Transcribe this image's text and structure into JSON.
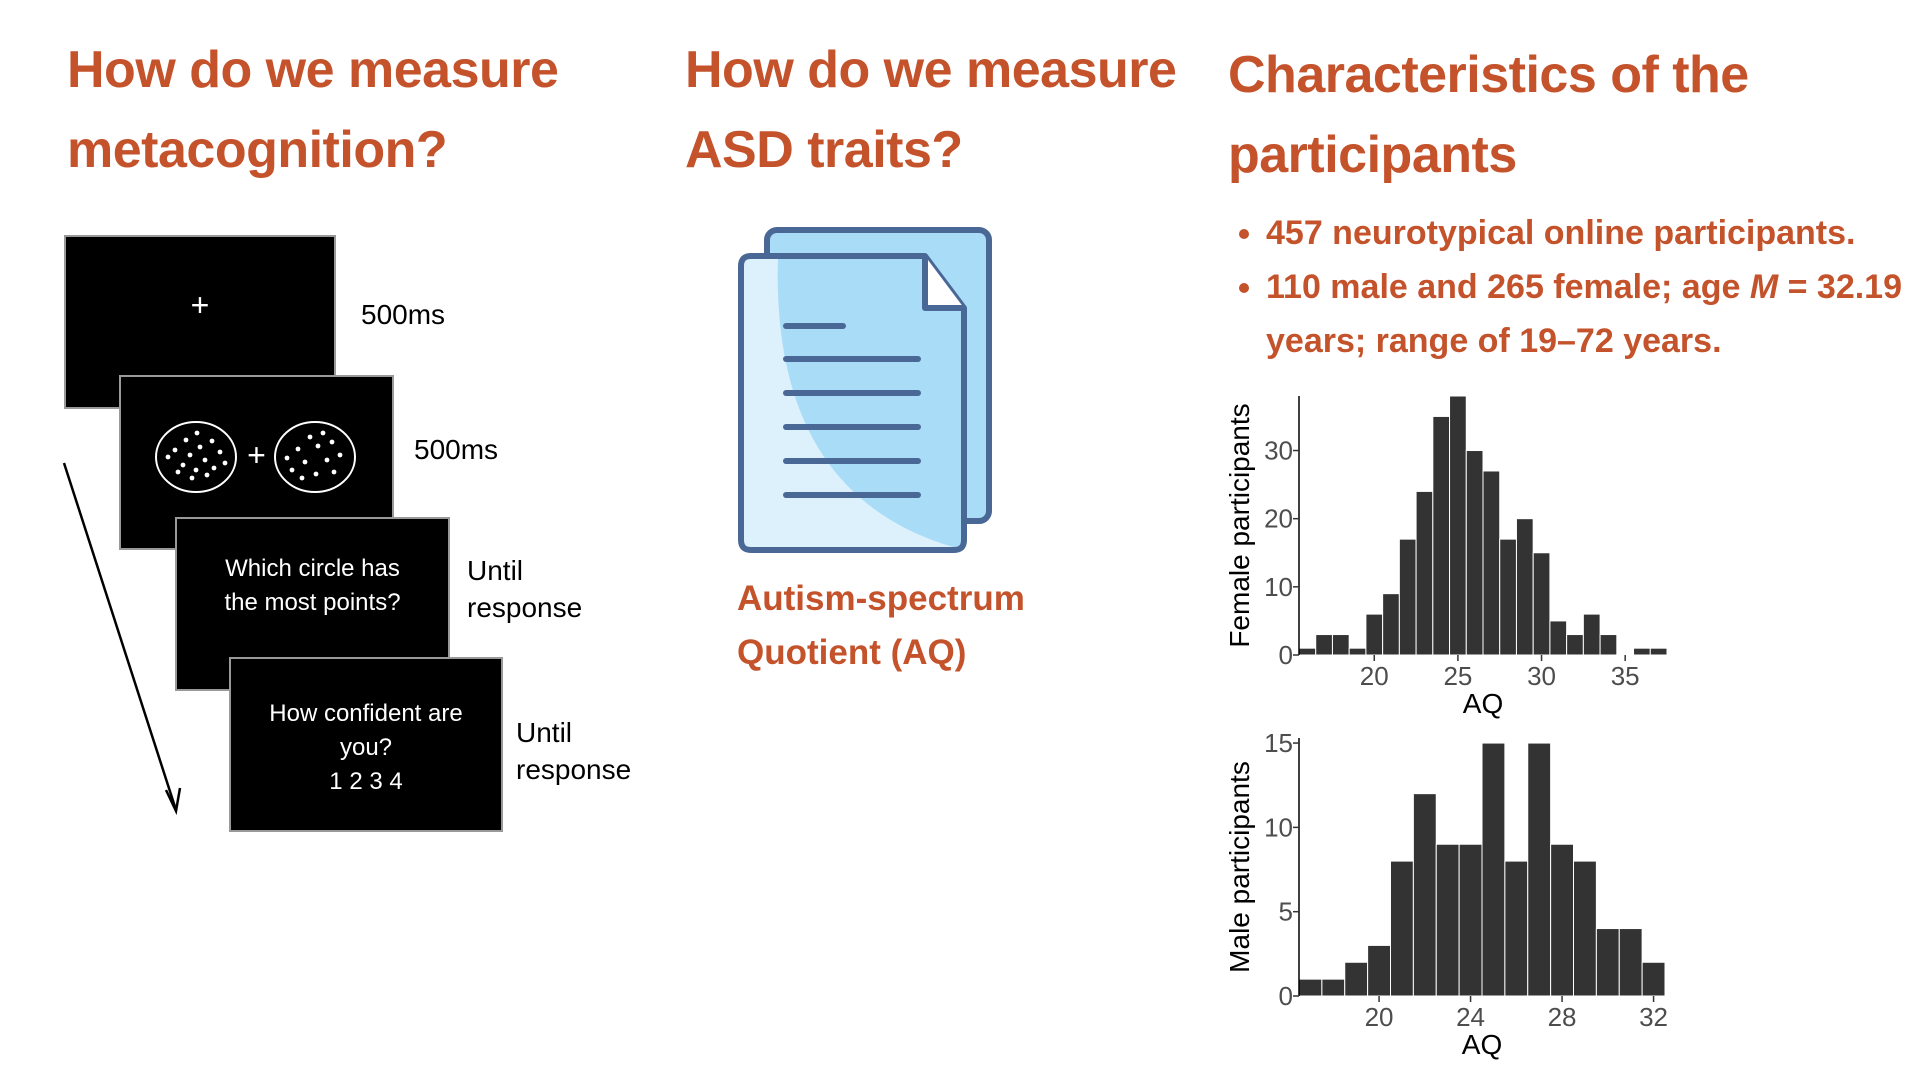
{
  "columns": [
    {
      "title": "How do we measure metacognition?",
      "trials": [
        {
          "screen": "+",
          "timing": "500ms"
        },
        {
          "screen": "+",
          "timing": "500ms"
        },
        {
          "screen": "Which circle has the most points?",
          "timing": "Until response"
        },
        {
          "screen": "How confident are you?",
          "scale": "1 2 3 4",
          "timing": "Until response"
        }
      ]
    },
    {
      "title": "How do we measure ASD traits?",
      "caption": "Autism-spectrum Quotient (AQ)"
    },
    {
      "title": "Characteristics of the participants",
      "bullets": [
        [
          "457 neurotypical online participants."
        ],
        [
          "110 male and 265 female; age ",
          "M",
          " = 32.19 years; range of 19–72 years."
        ]
      ]
    }
  ],
  "chart_data": [
    {
      "type": "histogram",
      "xlabel": "AQ",
      "ylabel": "Female participants",
      "color": "#333333",
      "bins": [
        15.5,
        16.5,
        17.5,
        18.5,
        19.5,
        20.5,
        21.5,
        22.5,
        23.5,
        24.5,
        25.5,
        26.5,
        27.5,
        28.5,
        29.5,
        30.5,
        31.5,
        32.5,
        33.5,
        34.5,
        35.5,
        36.5,
        37.5
      ],
      "values": [
        1,
        3,
        3,
        1,
        6,
        9,
        17,
        24,
        35,
        38,
        30,
        27,
        17,
        20,
        15,
        5,
        3,
        6,
        3,
        0,
        1,
        1
      ],
      "xlim": [
        15.5,
        37.5
      ],
      "ylim": [
        0,
        38
      ],
      "xticks": [
        20,
        25,
        30,
        35
      ],
      "yticks": [
        0,
        10,
        20,
        30
      ]
    },
    {
      "type": "histogram",
      "xlabel": "AQ",
      "ylabel": "Male participants",
      "color": "#333333",
      "bins": [
        16.5,
        17.5,
        18.5,
        19.5,
        20.5,
        21.5,
        22.5,
        23.5,
        24.5,
        25.5,
        26.5,
        27.5,
        28.5,
        29.5,
        30.5,
        31.5,
        32.5
      ],
      "values": [
        1,
        1,
        2,
        3,
        8,
        12,
        9,
        9,
        15,
        8,
        15,
        9,
        8,
        4,
        4,
        2
      ],
      "xlim": [
        16.5,
        32.5
      ],
      "ylim": [
        0,
        15.3
      ],
      "xticks": [
        20,
        24,
        28,
        32
      ],
      "yticks": [
        0,
        5,
        10,
        15
      ]
    }
  ]
}
